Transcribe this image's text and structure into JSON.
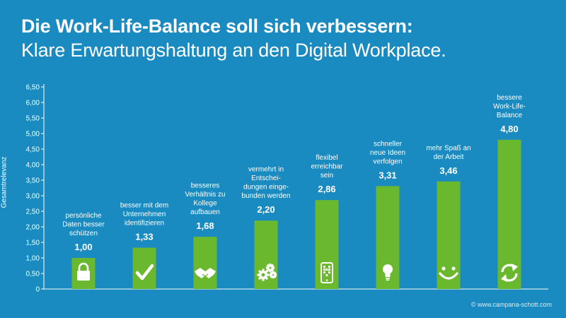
{
  "header": {
    "title": "Die Work-Life-Balance soll sich verbessern:",
    "subtitle": "Klare Erwartungshaltung an den Digital Workplace."
  },
  "footer": {
    "copyright": "© www.campana-schott.com"
  },
  "colors": {
    "background": "#1a8bc0",
    "bar": "#6ab82e",
    "axis": "#ffffff",
    "text": "#ffffff"
  },
  "chart_data": {
    "type": "bar",
    "title": "",
    "xlabel": "",
    "ylabel": "Gesamtrelevanz",
    "ylim": [
      0,
      6.5
    ],
    "yticks": [
      "0",
      "0,50",
      "1,00",
      "1,50",
      "2,00",
      "2,50",
      "3,00",
      "3,50",
      "4,00",
      "4,50",
      "5,00",
      "5,50",
      "6,00",
      "6,50"
    ],
    "grid": false,
    "categories": [
      [
        "persönliche",
        "Daten  besser",
        "schützen"
      ],
      [
        "besser mit dem",
        "Unternehmen",
        "identifizieren"
      ],
      [
        "besseres",
        "Verhältnis zu",
        "Kollege",
        "aufbauen"
      ],
      [
        "vermehrt in",
        "Entschei-",
        "dungen einge-",
        "bunden werden"
      ],
      [
        "flexibel",
        "erreichbar",
        "sein"
      ],
      [
        "schneller",
        "neue Ideen",
        "verfolgen"
      ],
      [
        "mehr Spaß an",
        "der Arbeit"
      ],
      [
        "bessere",
        "Work-Life-",
        "Balance"
      ]
    ],
    "values": [
      1.0,
      1.33,
      1.68,
      2.2,
      2.86,
      3.31,
      3.46,
      4.8
    ],
    "value_labels": [
      "1,00",
      "1,33",
      "1,68",
      "2,20",
      "2,86",
      "3,31",
      "3,46",
      "4,80"
    ],
    "icons": [
      "lock-icon",
      "checkmark-icon",
      "handshake-icon",
      "gears-icon",
      "smartphone-icon",
      "lightbulb-icon",
      "smiley-icon",
      "refresh-icon"
    ]
  }
}
